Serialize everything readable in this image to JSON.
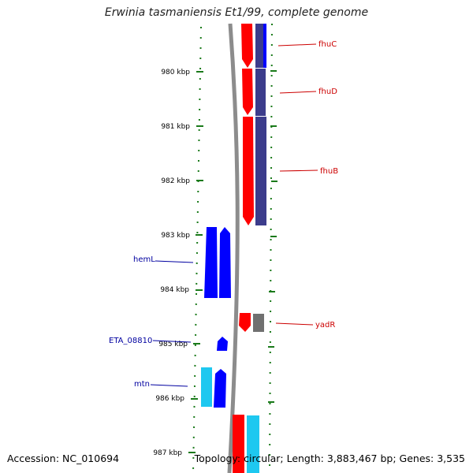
{
  "title": "Erwinia tasmaniensis Et1/99, complete genome",
  "footer": {
    "accession": "Accession: NC_010694",
    "summary": "Topology: circular; Length: 3,883,467 bp; Genes: 3,535"
  },
  "ticks": [
    {
      "label": "980 kbp"
    },
    {
      "label": "981 kbp"
    },
    {
      "label": "982 kbp"
    },
    {
      "label": "983 kbp"
    },
    {
      "label": "984 kbp"
    },
    {
      "label": "985 kbp"
    },
    {
      "label": "986 kbp"
    },
    {
      "label": "987 kbp"
    }
  ],
  "gene_labels": {
    "fhuC": "fhuC",
    "fhuD": "fhuD",
    "fhuB": "fhuB",
    "yadR": "yadR",
    "hemL": "hemL",
    "ETA_08810": "ETA_08810",
    "mtn": "mtn"
  },
  "colors": {
    "forward_gene": "#ff0000",
    "reverse_gene": "#0000ff",
    "purple_feature": "#3c3c8c",
    "cyan_feature": "#1ec8f0",
    "gray_feature": "#707070",
    "backbone": "#888888",
    "tick_green": "#1a7a1a",
    "label_red": "#cc0000",
    "label_blue": "#0000a0"
  }
}
